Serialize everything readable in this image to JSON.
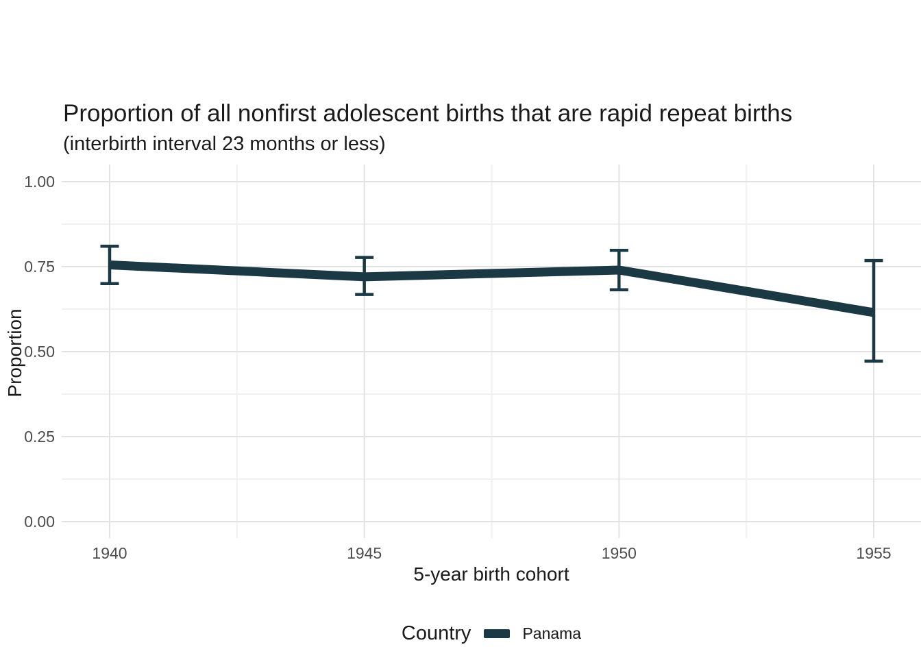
{
  "chart": {
    "title": "Proportion of all nonfirst adolescent births that are rapid repeat births",
    "subtitle": "(interbirth interval 23 months or less)",
    "xlabel": "5-year birth cohort",
    "ylabel": "Proportion"
  },
  "legend": {
    "title": "Country",
    "items": [
      {
        "label": "Panama",
        "color": "#1B3944"
      }
    ]
  },
  "colors": {
    "line": "#1B3944",
    "grid_major": "#E2E2E2",
    "grid_minor": "#F0F0F0",
    "tick_text": "#4D4D4D",
    "text": "#1A1A1A",
    "background": "#FFFFFF"
  },
  "chart_data": {
    "type": "line",
    "title": "Proportion of all nonfirst adolescent births that are rapid repeat births",
    "subtitle": "(interbirth interval 23 months or less)",
    "xlabel": "5-year birth cohort",
    "ylabel": "Proportion",
    "x": [
      1940,
      1945,
      1950,
      1955
    ],
    "series": [
      {
        "name": "Panama",
        "values": [
          0.755,
          0.72,
          0.74,
          0.615
        ],
        "ci_low": [
          0.7,
          0.668,
          0.682,
          0.472
        ],
        "ci_high": [
          0.81,
          0.777,
          0.798,
          0.768
        ],
        "color": "#1B3944"
      }
    ],
    "x_ticks": [
      {
        "value": 1940,
        "label": "1940"
      },
      {
        "value": 1945,
        "label": "1945"
      },
      {
        "value": 1950,
        "label": "1950"
      },
      {
        "value": 1955,
        "label": "1955"
      }
    ],
    "y_ticks": [
      {
        "value": 1.0,
        "label": "1.00"
      },
      {
        "value": 0.75,
        "label": "0.75"
      },
      {
        "value": 0.5,
        "label": "0.50"
      },
      {
        "value": 0.25,
        "label": "0.25"
      },
      {
        "value": 0.0,
        "label": "0.00"
      }
    ],
    "x_minor": [
      1942.5,
      1947.5,
      1952.5
    ],
    "y_minor": [
      0.125,
      0.375,
      0.625,
      0.875
    ],
    "ylim": [
      0,
      1
    ],
    "xlim": [
      1940,
      1955
    ],
    "grid": true,
    "errorbars": true,
    "legend_position": "bottom"
  }
}
